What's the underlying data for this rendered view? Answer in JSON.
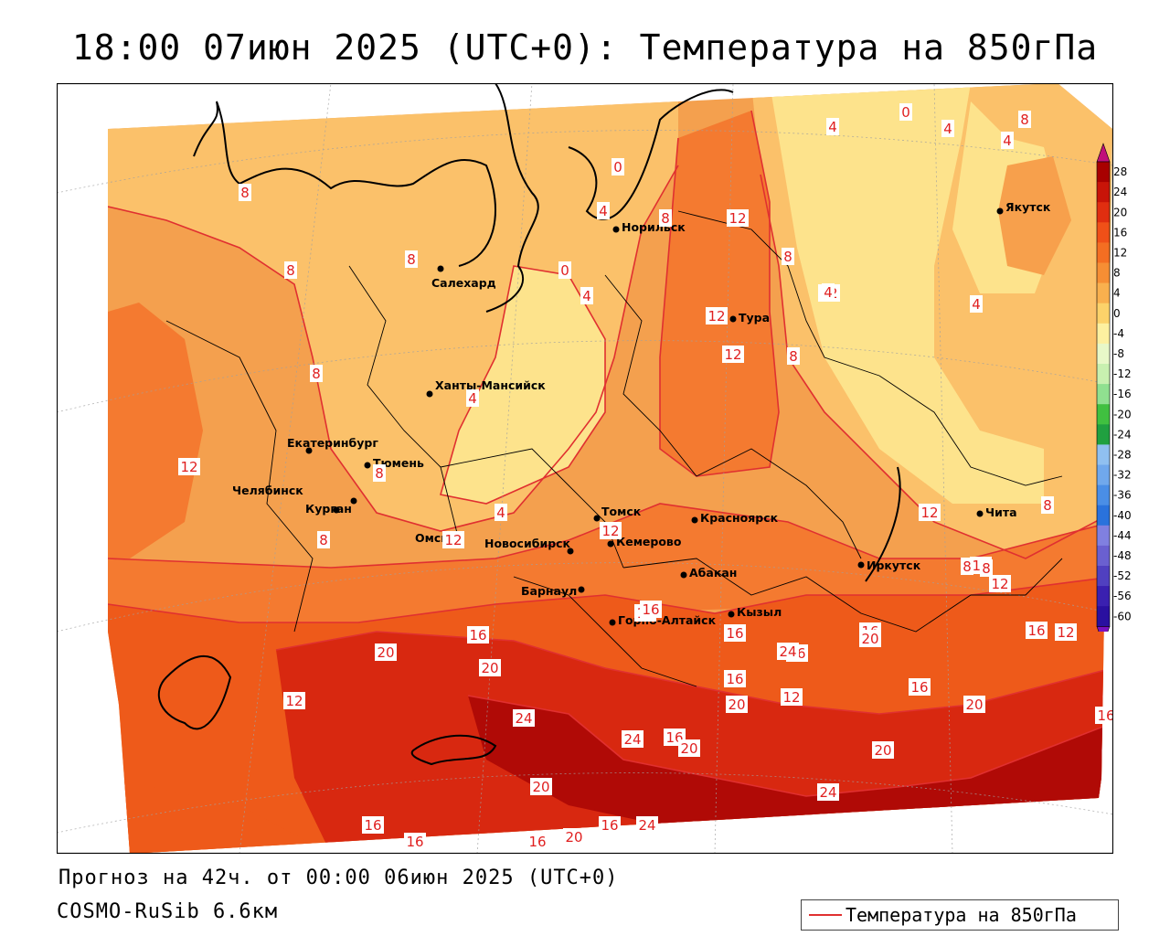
{
  "header": {
    "title": "18:00 07июн 2025 (UTC+0): Температура на 850гПа"
  },
  "footer": {
    "forecast": "Прогноз на 42ч. от 00:00 06июн 2025 (UTC+0)",
    "model": "COSMO-RuSib 6.6км"
  },
  "legend": {
    "label": "Температура на 850гПа",
    "line_color": "#e03030"
  },
  "colors": {
    "t0_4": "#fde38c",
    "t4_8": "#fbc16a",
    "t8_12": "#f7a04c",
    "t12_16": "#f47a30",
    "t16_20": "#ee5a1a",
    "t20_24": "#d82810",
    "t24_28": "#b00a06",
    "contour": "#e03030",
    "border": "#000000"
  },
  "cities": [
    {
      "name": "Салехард"
    },
    {
      "name": "Норильск"
    },
    {
      "name": "Якутск"
    },
    {
      "name": "Тура"
    },
    {
      "name": "Ханты-Мансийск"
    },
    {
      "name": "Екатеринбург"
    },
    {
      "name": "Тюмень"
    },
    {
      "name": "Челябинск"
    },
    {
      "name": "Курган"
    },
    {
      "name": "Омск"
    },
    {
      "name": "Томск"
    },
    {
      "name": "Красноярск"
    },
    {
      "name": "Новосибирск"
    },
    {
      "name": "Кемерово"
    },
    {
      "name": "Абакан"
    },
    {
      "name": "Иркутск"
    },
    {
      "name": "Чита"
    },
    {
      "name": "Барнаул"
    },
    {
      "name": "Горно-Алтайск"
    },
    {
      "name": "Кызыл"
    }
  ],
  "isotherm_labels": [
    "8",
    "8",
    "8",
    "0",
    "4",
    "8",
    "12",
    "0",
    "4",
    "0",
    "4",
    "8",
    "4",
    "4",
    "12",
    "8",
    "12",
    "8",
    "12",
    "4",
    "4",
    "8",
    "4",
    "4",
    "8",
    "12",
    "8",
    "12",
    "12",
    "16",
    "20",
    "20",
    "16",
    "12",
    "16",
    "16",
    "16",
    "16",
    "20",
    "12",
    "16",
    "20",
    "24",
    "24",
    "16",
    "20",
    "20",
    "24",
    "20",
    "24",
    "20",
    "16",
    "16",
    "16",
    "16",
    "20",
    "16",
    "24",
    "16",
    "12",
    "8",
    "12",
    "12",
    "8",
    "8",
    "12",
    "16"
  ],
  "colorbar": {
    "ticks": [
      "28",
      "24",
      "20",
      "16",
      "12",
      "8",
      "4",
      "0",
      "-4",
      "-8",
      "-12",
      "-16",
      "-20",
      "-24",
      "-28",
      "-32",
      "-36",
      "-40",
      "-44",
      "-48",
      "-52",
      "-56",
      "-60"
    ],
    "colors": [
      "#a80000",
      "#c81408",
      "#e02e10",
      "#f05018",
      "#f46e22",
      "#f68e34",
      "#f9b04e",
      "#fcd26a",
      "#fdf0a0",
      "#e8f8c8",
      "#c8f0b0",
      "#90e090",
      "#40c040",
      "#20a040",
      "#90c0f0",
      "#70a8ec",
      "#4a8ee6",
      "#2a72dc",
      "#8080e0",
      "#6a60d0",
      "#5040c0",
      "#3a20b0",
      "#2a10a0",
      "#7a10c0"
    ]
  }
}
